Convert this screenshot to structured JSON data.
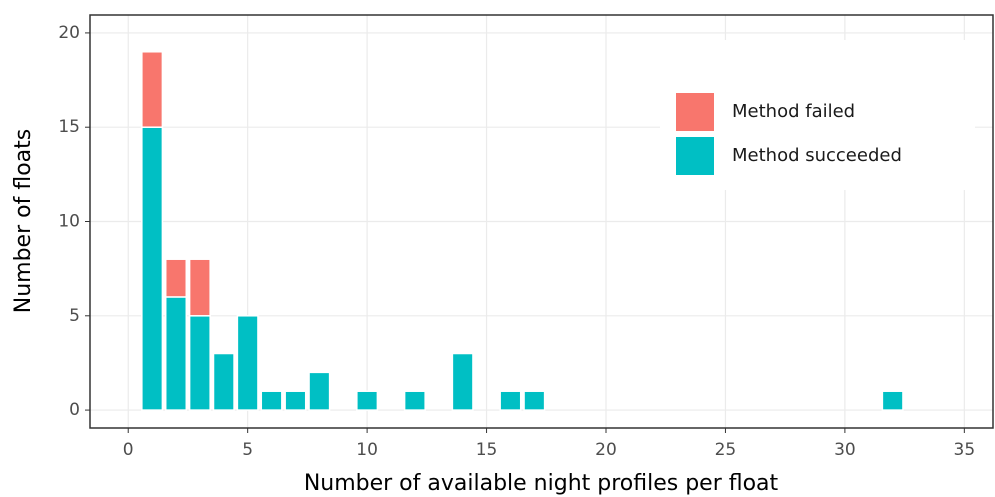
{
  "chart_data": {
    "type": "bar",
    "stacked": true,
    "x_label": "Number of available night profiles per float",
    "y_label": "Number of floats",
    "x": [
      1,
      2,
      3,
      4,
      5,
      6,
      7,
      8,
      10,
      12,
      14,
      16,
      17,
      32
    ],
    "series": [
      {
        "name": "Method succeeded",
        "color": "#00bfc4",
        "values": [
          15,
          6,
          5,
          3,
          5,
          1,
          1,
          2,
          1,
          1,
          3,
          1,
          1,
          1
        ]
      },
      {
        "name": "Method failed",
        "color": "#f8766d",
        "values": [
          4,
          2,
          3,
          0,
          0,
          0,
          0,
          0,
          0,
          0,
          0,
          0,
          0,
          0
        ]
      }
    ],
    "xlim": [
      -1.6,
      36.2
    ],
    "ylim": [
      -0.95,
      20.95
    ],
    "xticks": [
      0,
      5,
      10,
      15,
      20,
      25,
      30,
      35
    ],
    "yticks": [
      0,
      5,
      10,
      15,
      20
    ],
    "grid": true,
    "legend": "top-right"
  }
}
